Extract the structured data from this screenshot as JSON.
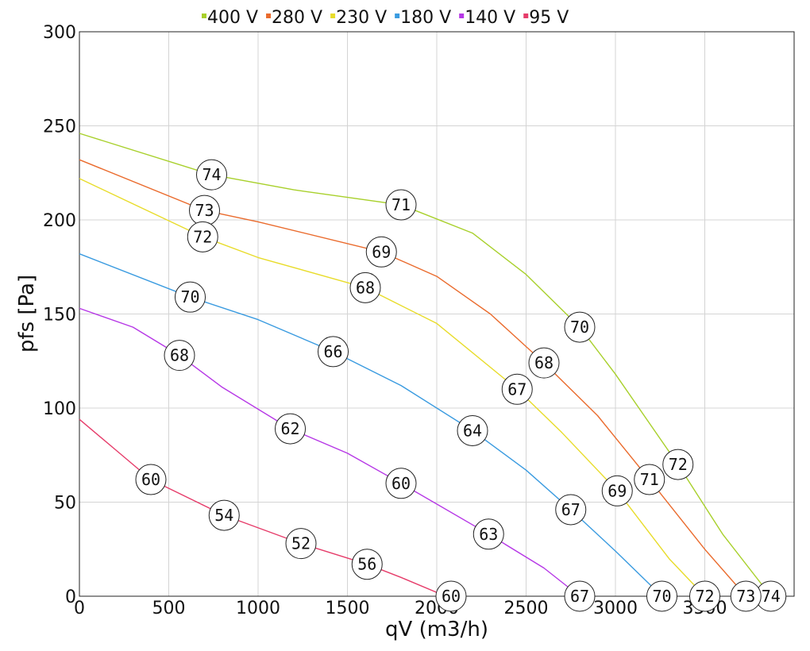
{
  "chart_data": {
    "type": "line",
    "title": "",
    "xlabel": "qV (m3/h)",
    "ylabel": "pfs [Pa]",
    "xlim": [
      0,
      4000
    ],
    "ylim": [
      0,
      300
    ],
    "xticks": [
      0,
      500,
      1000,
      1500,
      2000,
      2500,
      3000,
      3500
    ],
    "yticks": [
      0,
      50,
      100,
      150,
      200,
      250,
      300
    ],
    "grid": true,
    "legend": "top",
    "series": [
      {
        "name": "400 V",
        "color": "#a8d02b",
        "points": [
          [
            0,
            246
          ],
          [
            740,
            224
          ],
          [
            1200,
            216
          ],
          [
            1500,
            212
          ],
          [
            1800,
            208
          ],
          [
            2200,
            193
          ],
          [
            2500,
            171
          ],
          [
            2800,
            143
          ],
          [
            3000,
            118
          ],
          [
            3350,
            70
          ],
          [
            3600,
            33
          ],
          [
            3870,
            0
          ]
        ],
        "labels": [
          {
            "x": 740,
            "y": 224,
            "text": "74"
          },
          {
            "x": 1800,
            "y": 208,
            "text": "71"
          },
          {
            "x": 2800,
            "y": 143,
            "text": "70"
          },
          {
            "x": 3350,
            "y": 70,
            "text": "72"
          },
          {
            "x": 3870,
            "y": 0,
            "text": "74"
          }
        ]
      },
      {
        "name": "280 V",
        "color": "#ea6b2d",
        "points": [
          [
            0,
            232
          ],
          [
            700,
            205
          ],
          [
            1000,
            199
          ],
          [
            1690,
            183
          ],
          [
            2000,
            170
          ],
          [
            2300,
            150
          ],
          [
            2600,
            124
          ],
          [
            2900,
            96
          ],
          [
            3190,
            62
          ],
          [
            3500,
            25
          ],
          [
            3730,
            0
          ]
        ],
        "labels": [
          {
            "x": 700,
            "y": 205,
            "text": "73"
          },
          {
            "x": 1690,
            "y": 183,
            "text": "69"
          },
          {
            "x": 2600,
            "y": 124,
            "text": "68"
          },
          {
            "x": 3190,
            "y": 62,
            "text": "71"
          },
          {
            "x": 3730,
            "y": 0,
            "text": "73"
          }
        ]
      },
      {
        "name": "230 V",
        "color": "#e8dc2a",
        "points": [
          [
            0,
            222
          ],
          [
            690,
            191
          ],
          [
            1000,
            180
          ],
          [
            1600,
            164
          ],
          [
            2000,
            145
          ],
          [
            2450,
            110
          ],
          [
            2700,
            87
          ],
          [
            3010,
            56
          ],
          [
            3300,
            20
          ],
          [
            3500,
            0
          ]
        ],
        "labels": [
          {
            "x": 690,
            "y": 191,
            "text": "72"
          },
          {
            "x": 1600,
            "y": 164,
            "text": "68"
          },
          {
            "x": 2450,
            "y": 110,
            "text": "67"
          },
          {
            "x": 3010,
            "y": 56,
            "text": "69"
          },
          {
            "x": 3500,
            "y": 0,
            "text": "72"
          }
        ]
      },
      {
        "name": "180 V",
        "color": "#3a9be0",
        "points": [
          [
            0,
            182
          ],
          [
            620,
            159
          ],
          [
            1000,
            147
          ],
          [
            1420,
            130
          ],
          [
            1800,
            112
          ],
          [
            2200,
            88
          ],
          [
            2500,
            67
          ],
          [
            2750,
            46
          ],
          [
            3000,
            24
          ],
          [
            3260,
            0
          ]
        ],
        "labels": [
          {
            "x": 620,
            "y": 159,
            "text": "70"
          },
          {
            "x": 1420,
            "y": 130,
            "text": "66"
          },
          {
            "x": 2200,
            "y": 88,
            "text": "64"
          },
          {
            "x": 2750,
            "y": 46,
            "text": "67"
          },
          {
            "x": 3260,
            "y": 0,
            "text": "70"
          }
        ]
      },
      {
        "name": "140 V",
        "color": "#b637e6",
        "points": [
          [
            0,
            153
          ],
          [
            300,
            143
          ],
          [
            560,
            128
          ],
          [
            800,
            111
          ],
          [
            1180,
            89
          ],
          [
            1500,
            76
          ],
          [
            1800,
            60
          ],
          [
            2290,
            33
          ],
          [
            2600,
            15
          ],
          [
            2800,
            0
          ]
        ],
        "labels": [
          {
            "x": 560,
            "y": 128,
            "text": "68"
          },
          {
            "x": 1180,
            "y": 89,
            "text": "62"
          },
          {
            "x": 1800,
            "y": 60,
            "text": "60"
          },
          {
            "x": 2290,
            "y": 33,
            "text": "63"
          },
          {
            "x": 2800,
            "y": 0,
            "text": "67"
          }
        ]
      },
      {
        "name": "95 V",
        "color": "#e63c6a",
        "points": [
          [
            0,
            94
          ],
          [
            200,
            78
          ],
          [
            400,
            62
          ],
          [
            810,
            43
          ],
          [
            1240,
            28
          ],
          [
            1610,
            17
          ],
          [
            1800,
            10
          ],
          [
            2050,
            0
          ]
        ],
        "labels": [
          {
            "x": 400,
            "y": 62,
            "text": "60"
          },
          {
            "x": 810,
            "y": 43,
            "text": "54"
          },
          {
            "x": 1240,
            "y": 28,
            "text": "52"
          },
          {
            "x": 1610,
            "y": 17,
            "text": "56"
          },
          {
            "x": 2080,
            "y": 0,
            "text": "60"
          }
        ]
      }
    ]
  }
}
